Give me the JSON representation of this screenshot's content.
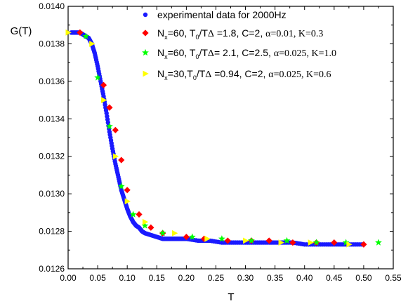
{
  "chart_data": {
    "type": "scatter",
    "xlabel": "T",
    "ylabel": "G(T)",
    "xlim": [
      0.0,
      0.55
    ],
    "ylim": [
      0.0126,
      0.014
    ],
    "x_ticks": [
      "0.00",
      "0.05",
      "0.10",
      "0.15",
      "0.20",
      "0.25",
      "0.30",
      "0.35",
      "0.40",
      "0.45",
      "0.50",
      "0.55"
    ],
    "y_ticks": [
      "0.0126",
      "0.0128",
      "0.0130",
      "0.0132",
      "0.0134",
      "0.0136",
      "0.0138",
      "0.0140"
    ],
    "legend_position": "top-right",
    "grid": false,
    "series": [
      {
        "name": "experimental data for 2000Hz",
        "legend": {
          "pre": "experimental data for 2000Hz",
          "segments": []
        },
        "marker": "circle",
        "color": "#1a1aff",
        "x": [
          0.005,
          0.01,
          0.015,
          0.02,
          0.025,
          0.03,
          0.035,
          0.04,
          0.045,
          0.05,
          0.055,
          0.06,
          0.065,
          0.07,
          0.075,
          0.08,
          0.085,
          0.09,
          0.095,
          0.1,
          0.105,
          0.11,
          0.115,
          0.12,
          0.125,
          0.13,
          0.14,
          0.15,
          0.16,
          0.17,
          0.18,
          0.19,
          0.2,
          0.22,
          0.24,
          0.26,
          0.28,
          0.3,
          0.32,
          0.34,
          0.36,
          0.38,
          0.4,
          0.42,
          0.44,
          0.46,
          0.48,
          0.5
        ],
        "y": [
          0.01386,
          0.01386,
          0.01386,
          0.01386,
          0.01385,
          0.01384,
          0.01383,
          0.0138,
          0.01375,
          0.01368,
          0.0136,
          0.01352,
          0.01343,
          0.01333,
          0.01324,
          0.01316,
          0.01309,
          0.01302,
          0.01297,
          0.01292,
          0.01288,
          0.01285,
          0.01283,
          0.01282,
          0.0128,
          0.01279,
          0.01278,
          0.01277,
          0.01276,
          0.01276,
          0.01276,
          0.01276,
          0.01276,
          0.01275,
          0.01275,
          0.01274,
          0.01274,
          0.01274,
          0.01274,
          0.01274,
          0.01274,
          0.01274,
          0.01273,
          0.01273,
          0.01273,
          0.01273,
          0.01273,
          0.01273
        ]
      },
      {
        "name": "N_x=60, T_0/TΔ =1.8, C=2, α=0.01, K=0.3",
        "legend": {
          "pre": "N",
          "segments": [
            [
              "sub",
              "x"
            ],
            [
              "t",
              "=60, T"
            ],
            [
              "sub",
              "0"
            ],
            [
              "t",
              "/T"
            ],
            [
              "g",
              "Δ"
            ],
            [
              "t",
              " =1.8, C=2, "
            ],
            [
              "g",
              "α=0.01, K=0.3"
            ]
          ]
        },
        "marker": "diamond",
        "color": "#ff0000",
        "x": [
          0.02,
          0.06,
          0.07,
          0.08,
          0.09,
          0.1,
          0.12,
          0.14,
          0.16,
          0.2,
          0.23,
          0.27,
          0.31,
          0.34,
          0.38,
          0.42,
          0.45,
          0.5
        ],
        "y": [
          0.01386,
          0.01358,
          0.01346,
          0.01334,
          0.01318,
          0.01302,
          0.01289,
          0.01282,
          0.01279,
          0.01277,
          0.01276,
          0.01275,
          0.01275,
          0.01275,
          0.01274,
          0.01274,
          0.01274,
          0.01273
        ]
      },
      {
        "name": "N_x=60, T_0/TΔ= 2.1, C=2.5, α=0.025, K=1.0",
        "legend": {
          "pre": "N",
          "segments": [
            [
              "sub",
              "x"
            ],
            [
              "t",
              "=60, T"
            ],
            [
              "sub",
              "0"
            ],
            [
              "t",
              "/T"
            ],
            [
              "g",
              "Δ"
            ],
            [
              "t",
              "= 2.1, C=2.5, "
            ],
            [
              "g",
              "α=0.025, K=1.0"
            ]
          ]
        },
        "marker": "star",
        "color": "#00ff00",
        "x": [
          0.03,
          0.05,
          0.07,
          0.09,
          0.11,
          0.13,
          0.16,
          0.21,
          0.26,
          0.31,
          0.37,
          0.42,
          0.47,
          0.525
        ],
        "y": [
          0.01384,
          0.01362,
          0.01336,
          0.01304,
          0.01289,
          0.01283,
          0.01279,
          0.01277,
          0.01276,
          0.01275,
          0.01275,
          0.01274,
          0.01274,
          0.01274
        ]
      },
      {
        "name": "N_x=30,T_0/TΔ =0.94, C=2, α=0.025, K=0.6",
        "legend": {
          "pre": "N",
          "segments": [
            [
              "sub",
              "x"
            ],
            [
              "t",
              "=30,T"
            ],
            [
              "sub",
              "0"
            ],
            [
              "t",
              "/T"
            ],
            [
              "g",
              "Δ"
            ],
            [
              "t",
              " =0.94, C=2, "
            ],
            [
              "g",
              "α=0.025, K=0.6"
            ]
          ]
        },
        "marker": "triangle-right",
        "color": "#ffff00",
        "x": [
          0.0,
          0.04,
          0.06,
          0.08,
          0.1,
          0.13,
          0.18,
          0.235,
          0.3,
          0.36,
          0.41,
          0.475
        ],
        "y": [
          0.01386,
          0.0138,
          0.0135,
          0.0132,
          0.01296,
          0.01285,
          0.01279,
          0.01276,
          0.01275,
          0.01274,
          0.01274,
          0.01273
        ]
      }
    ]
  }
}
